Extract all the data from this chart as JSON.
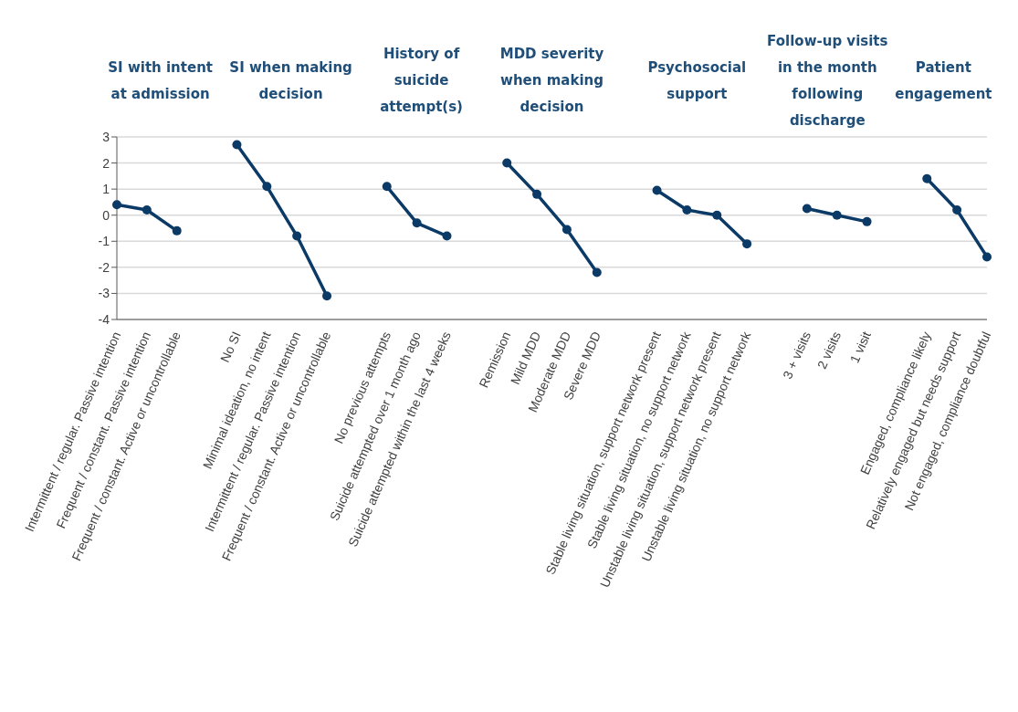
{
  "chart_data": {
    "type": "line",
    "categories": [
      "Intermittent / regular. Passive intention",
      "Frequent / constant. Passive intention",
      "Frequent / constant. Active or uncontrollable",
      null,
      "No SI",
      "Minimal ideation, no intent",
      "Intermittent / regular. Passive intention",
      "Frequent / constant. Active or uncontrollable",
      null,
      "No previous attempts",
      "Suicide attempted over 1 month ago",
      "Suicide attempted within the last 4 weeks",
      null,
      "Remission",
      "Mild MDD",
      "Moderate MDD",
      "Severe MDD",
      null,
      "Stable living situation, support network present",
      "Stable living situation, no support network",
      "Unstable living situation, support network present",
      "Unstable living situation, no support network",
      null,
      "3 + visits",
      "2 visits",
      "1 visit",
      null,
      "Engaged, compliance likely",
      "Relatively engaged but needs support",
      "Not engaged, compliance doubtful"
    ],
    "series": [
      {
        "color": "#0b3a66",
        "values": [
          0.4,
          0.2,
          -0.6,
          null,
          2.7,
          1.1,
          -0.8,
          -3.1,
          null,
          1.1,
          -0.3,
          -0.8,
          null,
          2.0,
          0.8,
          -0.55,
          -2.2,
          null,
          0.95,
          0.2,
          0.0,
          -1.1,
          null,
          0.25,
          0.0,
          -0.25,
          null,
          1.4,
          0.2,
          -1.6
        ]
      }
    ],
    "annotations": [
      "SI with intent\nat admission",
      "SI when making\ndecision",
      "History of\nsuicide\nattempt(s)",
      "MDD severity\nwhen making\ndecision",
      "Psychosocial\nsupport",
      "Follow-up visits\nin the month\nfollowing\ndischarge",
      "Patient\nengagement"
    ],
    "ylim": [
      -4,
      3
    ],
    "yticks": [
      -4,
      -3,
      -2,
      -1,
      0,
      1,
      2,
      3
    ],
    "grid": "y",
    "marker": "circle"
  }
}
